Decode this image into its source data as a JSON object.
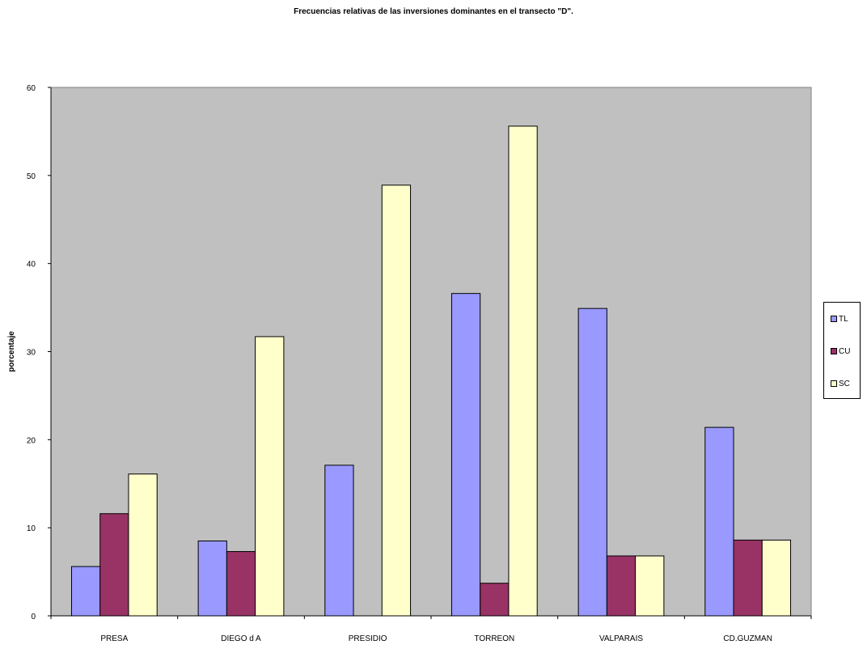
{
  "chart_data": {
    "type": "bar",
    "title": "Frecuencias relativas de las inversiones dominantes en el transecto \"D\".",
    "xlabel": "",
    "ylabel": "porcentaje",
    "ylim": [
      0,
      60
    ],
    "yticks": [
      0,
      10,
      20,
      30,
      40,
      50,
      60
    ],
    "grid": false,
    "legend_position": "right",
    "plot_background": "#c0c0c0",
    "categories": [
      "PRESA",
      "DIEGO d A",
      "PRESIDIO",
      "TORREON",
      "VALPARAIS",
      "CD.GUZMAN"
    ],
    "series": [
      {
        "name": "TL",
        "color": "#9999ff",
        "values": [
          5.6,
          8.5,
          17.1,
          36.6,
          34.9,
          21.4
        ]
      },
      {
        "name": "CU",
        "color": "#993366",
        "values": [
          11.6,
          7.3,
          0,
          3.7,
          6.8,
          8.6
        ]
      },
      {
        "name": "SC",
        "color": "#ffffcc",
        "values": [
          16.1,
          31.7,
          48.9,
          55.6,
          6.8,
          8.6
        ]
      }
    ]
  }
}
